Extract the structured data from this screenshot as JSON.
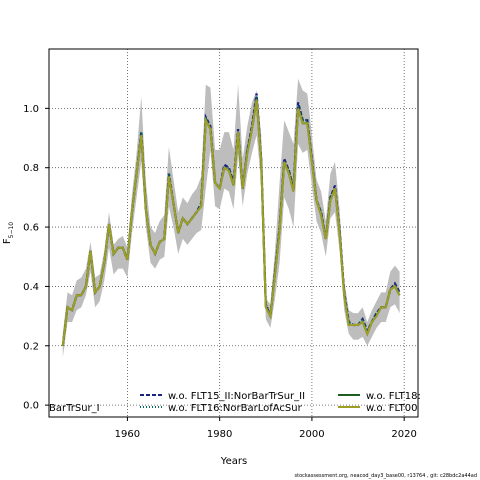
{
  "chart_data": {
    "type": "line",
    "title": "",
    "xlabel": "Years",
    "ylabel": "F",
    "ylabel_subscript": "5−10",
    "xlim": [
      1943,
      2023
    ],
    "ylim": [
      -0.04,
      1.2
    ],
    "xticks": [
      1960,
      1980,
      2000,
      2020
    ],
    "yticks": [
      0.0,
      0.2,
      0.4,
      0.6,
      0.8,
      1.0
    ],
    "grid": true,
    "legend_position": "bottom",
    "x": [
      1946,
      1947,
      1948,
      1949,
      1950,
      1951,
      1952,
      1953,
      1954,
      1955,
      1956,
      1957,
      1958,
      1959,
      1960,
      1961,
      1962,
      1963,
      1964,
      1965,
      1966,
      1967,
      1968,
      1969,
      1970,
      1971,
      1972,
      1973,
      1974,
      1975,
      1976,
      1977,
      1978,
      1979,
      1980,
      1981,
      1982,
      1983,
      1984,
      1985,
      1986,
      1987,
      1988,
      1989,
      1990,
      1991,
      1992,
      1993,
      1994,
      1995,
      1996,
      1997,
      1998,
      1999,
      2000,
      2001,
      2002,
      2003,
      2004,
      2005,
      2006,
      2007,
      2008,
      2009,
      2010,
      2011,
      2012,
      2013,
      2014,
      2015,
      2016,
      2017,
      2018,
      2019
    ],
    "band": {
      "lower": [
        0.16,
        0.28,
        0.28,
        0.32,
        0.33,
        0.37,
        0.45,
        0.33,
        0.35,
        0.42,
        0.53,
        0.44,
        0.46,
        0.46,
        0.43,
        0.58,
        0.7,
        0.82,
        0.6,
        0.48,
        0.46,
        0.49,
        0.5,
        0.67,
        0.6,
        0.51,
        0.56,
        0.54,
        0.56,
        0.58,
        0.59,
        0.73,
        0.86,
        0.67,
        0.66,
        0.73,
        0.72,
        0.66,
        0.84,
        0.67,
        0.78,
        0.85,
        0.91,
        0.75,
        0.29,
        0.26,
        0.36,
        0.48,
        0.7,
        0.66,
        0.6,
        0.88,
        0.85,
        0.86,
        0.74,
        0.62,
        0.58,
        0.5,
        0.63,
        0.65,
        0.52,
        0.32,
        0.24,
        0.22,
        0.22,
        0.23,
        0.2,
        0.23,
        0.26,
        0.28,
        0.28,
        0.33,
        0.34,
        0.31
      ],
      "upper": [
        0.24,
        0.38,
        0.37,
        0.42,
        0.43,
        0.46,
        0.55,
        0.43,
        0.44,
        0.52,
        0.65,
        0.54,
        0.56,
        0.57,
        0.53,
        0.71,
        0.85,
        1.04,
        0.75,
        0.6,
        0.58,
        0.62,
        0.64,
        0.87,
        0.76,
        0.65,
        0.7,
        0.68,
        0.71,
        0.73,
        0.77,
        1.08,
        1.07,
        0.86,
        0.86,
        0.92,
        0.92,
        0.86,
        1.08,
        0.83,
        0.94,
        1.02,
        1.06,
        0.91,
        0.36,
        0.34,
        0.52,
        0.75,
        0.96,
        0.92,
        0.88,
        1.1,
        1.06,
        1.05,
        0.91,
        0.76,
        0.72,
        0.62,
        0.78,
        0.82,
        0.66,
        0.42,
        0.32,
        0.31,
        0.31,
        0.33,
        0.28,
        0.32,
        0.35,
        0.38,
        0.38,
        0.45,
        0.47,
        0.45
      ]
    },
    "series": [
      {
        "name": "w.o. FLT15_II:NorBarTrSur_II",
        "color": "#1a237e",
        "dash": "4,2",
        "values": [
          0.2,
          0.33,
          0.32,
          0.37,
          0.37,
          0.4,
          0.52,
          0.38,
          0.4,
          0.48,
          0.61,
          0.51,
          0.53,
          0.53,
          0.49,
          0.65,
          0.78,
          0.92,
          0.66,
          0.54,
          0.51,
          0.55,
          0.56,
          0.78,
          0.68,
          0.58,
          0.63,
          0.61,
          0.63,
          0.65,
          0.68,
          0.97,
          0.94,
          0.75,
          0.73,
          0.81,
          0.8,
          0.75,
          0.93,
          0.73,
          0.86,
          0.94,
          1.05,
          0.83,
          0.34,
          0.3,
          0.45,
          0.6,
          0.83,
          0.79,
          0.73,
          1.02,
          0.96,
          0.96,
          0.83,
          0.69,
          0.65,
          0.56,
          0.7,
          0.74,
          0.59,
          0.38,
          0.28,
          0.27,
          0.27,
          0.29,
          0.25,
          0.28,
          0.31,
          0.33,
          0.33,
          0.39,
          0.41,
          0.38
        ]
      },
      {
        "name": "w.o. FLT16:NorBarLofAcSur",
        "color": "#00695c",
        "dash": "1,2",
        "values": [
          0.2,
          0.33,
          0.32,
          0.37,
          0.37,
          0.4,
          0.52,
          0.38,
          0.4,
          0.48,
          0.61,
          0.51,
          0.53,
          0.53,
          0.49,
          0.65,
          0.78,
          0.92,
          0.66,
          0.54,
          0.51,
          0.55,
          0.56,
          0.78,
          0.68,
          0.58,
          0.63,
          0.61,
          0.63,
          0.65,
          0.68,
          0.97,
          0.93,
          0.75,
          0.73,
          0.8,
          0.8,
          0.74,
          0.92,
          0.73,
          0.86,
          0.93,
          1.04,
          0.83,
          0.34,
          0.3,
          0.45,
          0.6,
          0.82,
          0.79,
          0.73,
          1.01,
          0.96,
          0.96,
          0.83,
          0.69,
          0.65,
          0.56,
          0.7,
          0.73,
          0.59,
          0.38,
          0.28,
          0.27,
          0.27,
          0.29,
          0.25,
          0.28,
          0.31,
          0.33,
          0.33,
          0.39,
          0.4,
          0.38
        ]
      },
      {
        "name": "w.o. FLT18:",
        "color": "#1b5e20",
        "dash": "",
        "values": [
          0.2,
          0.33,
          0.32,
          0.37,
          0.37,
          0.4,
          0.52,
          0.38,
          0.4,
          0.48,
          0.61,
          0.51,
          0.53,
          0.53,
          0.49,
          0.65,
          0.78,
          0.91,
          0.66,
          0.54,
          0.51,
          0.55,
          0.56,
          0.77,
          0.68,
          0.58,
          0.63,
          0.61,
          0.63,
          0.65,
          0.67,
          0.96,
          0.93,
          0.75,
          0.73,
          0.8,
          0.79,
          0.74,
          0.92,
          0.73,
          0.85,
          0.93,
          1.03,
          0.82,
          0.33,
          0.3,
          0.44,
          0.59,
          0.82,
          0.78,
          0.72,
          1.0,
          0.95,
          0.95,
          0.82,
          0.69,
          0.64,
          0.56,
          0.69,
          0.73,
          0.58,
          0.37,
          0.27,
          0.27,
          0.27,
          0.28,
          0.24,
          0.28,
          0.3,
          0.33,
          0.33,
          0.39,
          0.4,
          0.37
        ]
      },
      {
        "name": "w.o. FLT00",
        "color": "#9e9d24",
        "dash": "",
        "values": [
          0.2,
          0.33,
          0.32,
          0.37,
          0.37,
          0.4,
          0.52,
          0.38,
          0.4,
          0.48,
          0.61,
          0.51,
          0.53,
          0.53,
          0.49,
          0.65,
          0.78,
          0.91,
          0.66,
          0.54,
          0.51,
          0.55,
          0.56,
          0.77,
          0.68,
          0.58,
          0.63,
          0.61,
          0.63,
          0.65,
          0.67,
          0.96,
          0.93,
          0.75,
          0.73,
          0.8,
          0.79,
          0.74,
          0.92,
          0.73,
          0.85,
          0.93,
          1.03,
          0.82,
          0.33,
          0.3,
          0.44,
          0.59,
          0.82,
          0.78,
          0.72,
          1.0,
          0.95,
          0.95,
          0.82,
          0.69,
          0.64,
          0.56,
          0.69,
          0.73,
          0.58,
          0.37,
          0.27,
          0.27,
          0.27,
          0.28,
          0.24,
          0.28,
          0.3,
          0.33,
          0.33,
          0.39,
          0.4,
          0.37
        ]
      }
    ],
    "legend_extra_text": "BarTrSur_I",
    "band_color": "#bdbdbd",
    "grid_color": "#555555"
  },
  "footer": "stockassessment.org,  neacod_day3_base00,  r13764 ,  git: c28bdc2a44ad"
}
